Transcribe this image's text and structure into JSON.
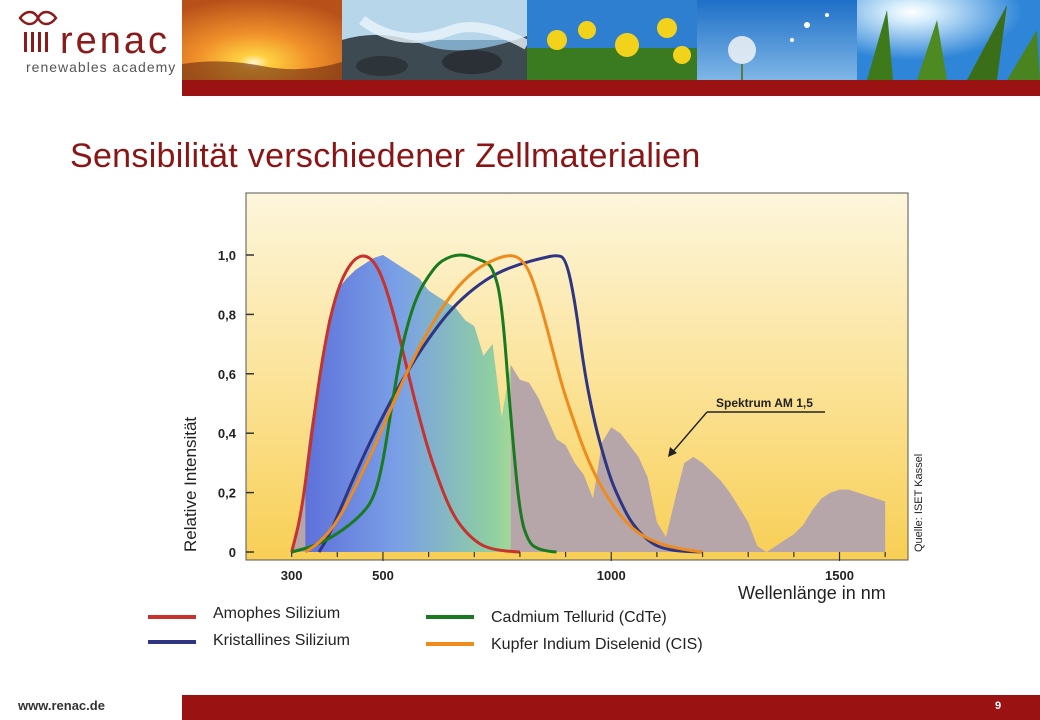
{
  "header": {
    "logo_word": "renac",
    "logo_subtitle": "renewables academy",
    "photos": [
      "sunset-photo",
      "waterfall-photo",
      "rapeseed-photo",
      "dandelion-photo",
      "cornfield-photo"
    ]
  },
  "slide": {
    "title": "Sensibilität verschiedener Zellmaterialien",
    "source": "Quelle: ISET Kassel",
    "x_axis_label": "Wellenlänge in nm",
    "y_axis_label": "Relative Intensität"
  },
  "legend": {
    "items": [
      {
        "label": "Amophes Silizium",
        "color": "#c8322c"
      },
      {
        "label": "Kristallines Silizium",
        "color": "#2e3583"
      },
      {
        "label": "Cadmium Tellurid (CdTe)",
        "color": "#1a7a1f"
      },
      {
        "label": "Kupfer Indium Diselenid (CIS)",
        "color": "#ef8a1c"
      }
    ]
  },
  "chart_data": {
    "type": "line",
    "xlabel": "Wellenlänge in nm",
    "ylabel": "Relative Intensität",
    "xlim": [
      200,
      1650
    ],
    "ylim": [
      0,
      1.1
    ],
    "x_ticks": [
      300,
      500,
      1000,
      1500
    ],
    "y_ticks": [
      "0",
      "0,2",
      "0,4",
      "0,6",
      "0,8",
      "1,0"
    ],
    "y_tick_values": [
      0,
      0.2,
      0.4,
      0.6,
      0.8,
      1.0
    ],
    "annotation": "Spektrum AM 1,5",
    "spectrum": {
      "x": [
        300,
        320,
        340,
        360,
        380,
        400,
        420,
        440,
        460,
        480,
        500,
        520,
        540,
        560,
        580,
        600,
        620,
        640,
        660,
        680,
        700,
        720,
        740,
        760,
        780,
        800,
        820,
        840,
        860,
        880,
        900,
        920,
        940,
        960,
        980,
        1000,
        1020,
        1040,
        1060,
        1080,
        1100,
        1120,
        1140,
        1160,
        1180,
        1200,
        1220,
        1240,
        1260,
        1280,
        1300,
        1320,
        1340,
        1360,
        1380,
        1400,
        1420,
        1440,
        1460,
        1480,
        1500,
        1520,
        1540,
        1560,
        1580,
        1600
      ],
      "y": [
        0.0,
        0.15,
        0.4,
        0.6,
        0.78,
        0.88,
        0.92,
        0.95,
        0.97,
        0.99,
        1.0,
        0.98,
        0.96,
        0.94,
        0.92,
        0.88,
        0.86,
        0.84,
        0.82,
        0.78,
        0.76,
        0.66,
        0.7,
        0.45,
        0.63,
        0.58,
        0.57,
        0.52,
        0.45,
        0.38,
        0.36,
        0.3,
        0.26,
        0.18,
        0.37,
        0.42,
        0.4,
        0.36,
        0.32,
        0.25,
        0.1,
        0.05,
        0.18,
        0.3,
        0.32,
        0.3,
        0.27,
        0.24,
        0.2,
        0.15,
        0.1,
        0.02,
        0.0,
        0.02,
        0.04,
        0.06,
        0.09,
        0.14,
        0.18,
        0.2,
        0.21,
        0.21,
        0.2,
        0.19,
        0.18,
        0.17
      ]
    },
    "series": [
      {
        "name": "Amophes Silizium",
        "color": "#c8322c",
        "x": [
          300,
          320,
          340,
          360,
          380,
          400,
          420,
          440,
          460,
          480,
          500,
          520,
          540,
          560,
          580,
          600,
          620,
          640,
          660,
          680,
          700,
          720,
          740,
          760,
          780,
          800
        ],
        "y": [
          0.0,
          0.12,
          0.35,
          0.58,
          0.76,
          0.88,
          0.95,
          0.99,
          1.0,
          0.98,
          0.92,
          0.82,
          0.7,
          0.57,
          0.45,
          0.34,
          0.25,
          0.17,
          0.11,
          0.07,
          0.04,
          0.02,
          0.01,
          0.005,
          0.002,
          0.0
        ]
      },
      {
        "name": "Kristallines Silizium",
        "color": "#2e3583",
        "x": [
          360,
          380,
          400,
          450,
          500,
          550,
          600,
          650,
          700,
          750,
          800,
          850,
          880,
          900,
          920,
          940,
          960,
          980,
          1000,
          1020,
          1040,
          1060,
          1080,
          1100,
          1120,
          1150,
          1200
        ],
        "y": [
          0.0,
          0.05,
          0.12,
          0.3,
          0.46,
          0.6,
          0.72,
          0.82,
          0.89,
          0.94,
          0.97,
          0.99,
          1.0,
          0.99,
          0.85,
          0.62,
          0.46,
          0.34,
          0.24,
          0.17,
          0.11,
          0.07,
          0.04,
          0.02,
          0.01,
          0.003,
          0.0
        ]
      },
      {
        "name": "Cadmium Tellurid (CdTe)",
        "color": "#1a7a1f",
        "x": [
          300,
          350,
          400,
          450,
          480,
          500,
          520,
          540,
          560,
          580,
          600,
          620,
          640,
          660,
          680,
          700,
          720,
          740,
          760,
          780,
          800,
          820,
          840,
          860,
          880
        ],
        "y": [
          0.0,
          0.02,
          0.06,
          0.12,
          0.18,
          0.3,
          0.5,
          0.68,
          0.8,
          0.88,
          0.93,
          0.97,
          0.99,
          1.0,
          1.0,
          0.99,
          0.98,
          0.96,
          0.85,
          0.45,
          0.12,
          0.03,
          0.01,
          0.003,
          0.0
        ]
      },
      {
        "name": "Kupfer Indium Diselenid (CIS)",
        "color": "#ef8a1c",
        "x": [
          330,
          360,
          400,
          450,
          500,
          550,
          600,
          650,
          700,
          750,
          780,
          800,
          820,
          840,
          860,
          880,
          900,
          950,
          1000,
          1050,
          1100,
          1150,
          1200
        ],
        "y": [
          0.0,
          0.03,
          0.1,
          0.25,
          0.42,
          0.6,
          0.75,
          0.87,
          0.95,
          0.99,
          1.0,
          0.99,
          0.95,
          0.86,
          0.75,
          0.63,
          0.52,
          0.3,
          0.16,
          0.07,
          0.03,
          0.01,
          0.0
        ]
      }
    ]
  },
  "footer": {
    "url": "www.renac.de",
    "page_number": "9"
  }
}
